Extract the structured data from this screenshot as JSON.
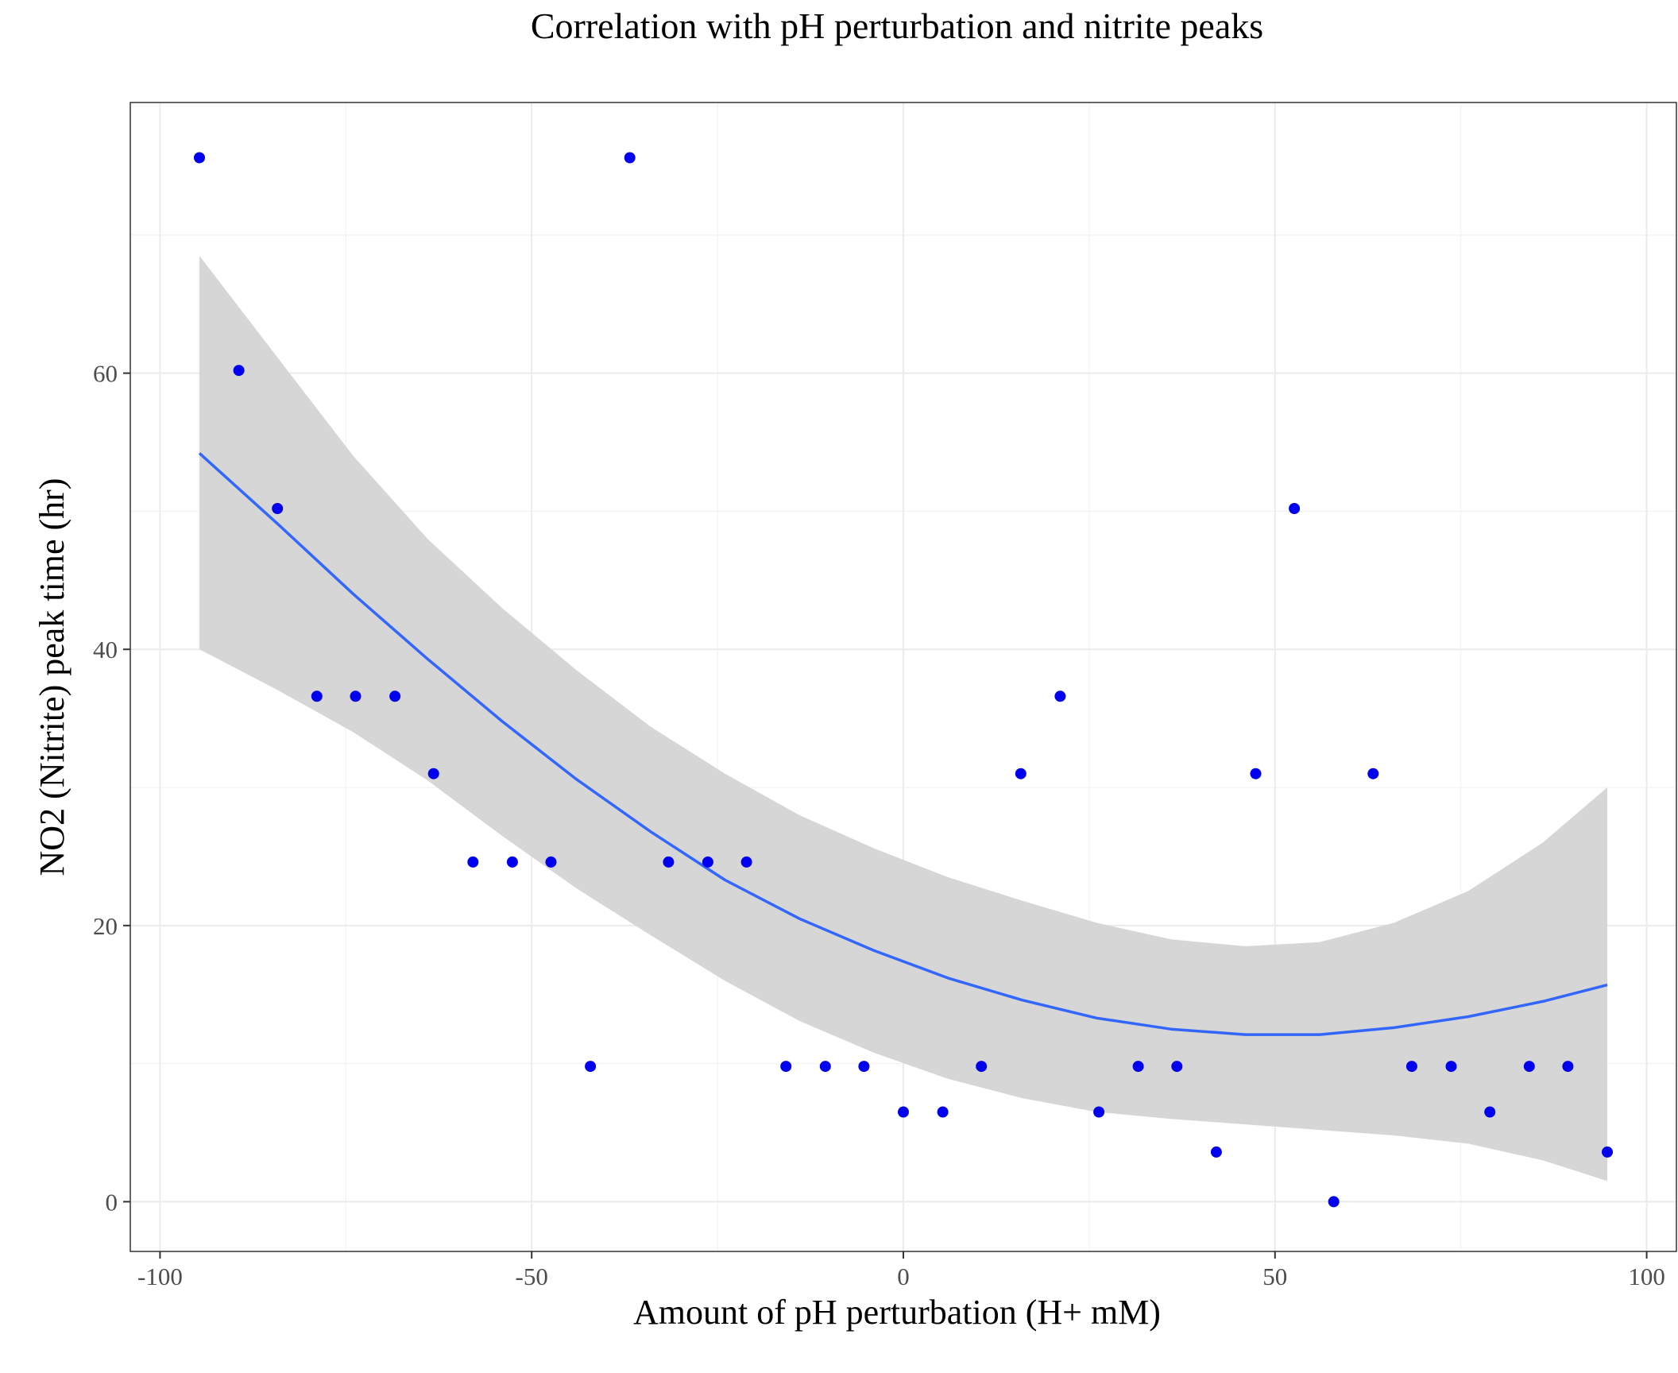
{
  "chart_data": {
    "type": "scatter",
    "title": "Correlation with pH perturbation and nitrite peaks",
    "xlabel": "Amount of pH perturbation (H+ mM)",
    "ylabel": "NO2 (Nitrite) peak time (hr)",
    "xlim": [
      -104,
      104
    ],
    "ylim": [
      -3.6,
      79.6
    ],
    "x_ticks": [
      -100,
      -50,
      0,
      50,
      100
    ],
    "x_tick_labels": [
      "-100",
      "-50",
      "0",
      "50",
      "100"
    ],
    "y_ticks": [
      0,
      20,
      40,
      60
    ],
    "y_tick_labels": [
      "0",
      "20",
      "40",
      "60"
    ],
    "grid": true,
    "legend": "none",
    "point_color": "#0000ee",
    "smooth_color": "#3366ff",
    "band_color": "#d6d6d6",
    "points": [
      {
        "x": -94.7,
        "y": 75.6
      },
      {
        "x": -89.4,
        "y": 60.2
      },
      {
        "x": -84.2,
        "y": 50.2
      },
      {
        "x": -78.9,
        "y": 36.6
      },
      {
        "x": -73.7,
        "y": 36.6
      },
      {
        "x": -68.4,
        "y": 36.6
      },
      {
        "x": -63.2,
        "y": 31.0
      },
      {
        "x": -57.9,
        "y": 24.6
      },
      {
        "x": -52.6,
        "y": 24.6
      },
      {
        "x": -47.4,
        "y": 24.6
      },
      {
        "x": -42.1,
        "y": 9.8
      },
      {
        "x": -36.8,
        "y": 75.6
      },
      {
        "x": -31.6,
        "y": 24.6
      },
      {
        "x": -26.3,
        "y": 24.6
      },
      {
        "x": -21.1,
        "y": 24.6
      },
      {
        "x": -15.8,
        "y": 9.8
      },
      {
        "x": -10.5,
        "y": 9.8
      },
      {
        "x": -5.3,
        "y": 9.8
      },
      {
        "x": 0.0,
        "y": 6.5
      },
      {
        "x": 5.3,
        "y": 6.5
      },
      {
        "x": 10.5,
        "y": 9.8
      },
      {
        "x": 15.8,
        "y": 31.0
      },
      {
        "x": 21.1,
        "y": 36.6
      },
      {
        "x": 26.3,
        "y": 6.5
      },
      {
        "x": 31.6,
        "y": 9.8
      },
      {
        "x": 36.8,
        "y": 9.8
      },
      {
        "x": 42.1,
        "y": 3.6
      },
      {
        "x": 47.4,
        "y": 31.0
      },
      {
        "x": 52.6,
        "y": 50.2
      },
      {
        "x": 57.9,
        "y": 0.0
      },
      {
        "x": 63.2,
        "y": 31.0
      },
      {
        "x": 68.4,
        "y": 9.8
      },
      {
        "x": 73.7,
        "y": 9.8
      },
      {
        "x": 78.9,
        "y": 6.5
      },
      {
        "x": 84.2,
        "y": 9.8
      },
      {
        "x": 89.4,
        "y": 9.8
      },
      {
        "x": 94.7,
        "y": 3.6
      }
    ],
    "smooth": {
      "x": [
        -94.7,
        -84.0,
        -74.0,
        -64.0,
        -54.0,
        -44.0,
        -34.0,
        -24.0,
        -14.0,
        -4.0,
        6.0,
        16.0,
        26.0,
        36.0,
        46.0,
        56.0,
        66.0,
        76.0,
        86.0,
        94.7
      ],
      "y": [
        54.2,
        49.0,
        44.0,
        39.3,
        34.8,
        30.6,
        26.8,
        23.3,
        20.5,
        18.2,
        16.2,
        14.6,
        13.3,
        12.5,
        12.1,
        12.1,
        12.6,
        13.4,
        14.5,
        15.7
      ],
      "lower": [
        40.0,
        37.0,
        34.0,
        30.5,
        26.5,
        22.7,
        19.3,
        16.0,
        13.1,
        10.8,
        8.9,
        7.5,
        6.5,
        6.0,
        5.6,
        5.2,
        4.8,
        4.2,
        3.0,
        1.5
      ],
      "upper": [
        68.5,
        61.0,
        54.0,
        48.0,
        43.0,
        38.5,
        34.4,
        31.0,
        28.0,
        25.6,
        23.5,
        21.8,
        20.2,
        19.0,
        18.5,
        18.8,
        20.2,
        22.5,
        26.0,
        30.0
      ]
    }
  }
}
